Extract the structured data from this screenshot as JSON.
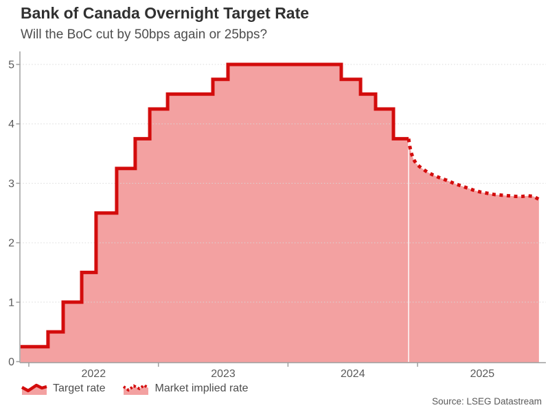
{
  "header": {
    "title": "Bank of Canada Overnight Target Rate",
    "subtitle": "Will the BoC cut by 50bps again or 25bps?"
  },
  "legend": {
    "items": [
      {
        "label": "Target rate",
        "line_style": "solid"
      },
      {
        "label": "Market implied rate",
        "line_style": "dotted"
      }
    ]
  },
  "footer": {
    "source": "Source: LSEG Datastream"
  },
  "colors": {
    "line": "#d30c0c",
    "fill": "#f3a1a1",
    "axis": "#9e9e9e",
    "grid": "#d8d8d8",
    "tick_text": "#595959",
    "separator": "#ffffff"
  },
  "chart_data": {
    "type": "line",
    "title": "Bank of Canada Overnight Target Rate",
    "subtitle": "Will the BoC cut by 50bps again or 25bps?",
    "xlabel": "",
    "ylabel": "",
    "grid": "horizontal-dotted",
    "legend_position": "bottom-left",
    "x_axis": {
      "ticks": [
        2022,
        2023,
        2024,
        2025
      ],
      "range_years": [
        2021.93,
        2026.0
      ],
      "tick_label_position": "mid-year"
    },
    "y_axis": {
      "ticks": [
        0,
        1,
        2,
        3,
        4,
        5
      ],
      "range": [
        0,
        5.2
      ]
    },
    "series": [
      {
        "name": "Target rate",
        "style": "step",
        "line": "solid",
        "points_year_rate": [
          [
            2021.936,
            0.25
          ],
          [
            2022.148,
            0.5
          ],
          [
            2022.265,
            1.0
          ],
          [
            2022.408,
            1.5
          ],
          [
            2022.519,
            2.5
          ],
          [
            2022.678,
            3.25
          ],
          [
            2022.821,
            3.75
          ],
          [
            2022.933,
            4.25
          ],
          [
            2023.071,
            4.5
          ],
          [
            2023.42,
            4.75
          ],
          [
            2023.537,
            5.0
          ],
          [
            2024.411,
            4.75
          ],
          [
            2024.56,
            4.5
          ],
          [
            2024.676,
            4.25
          ],
          [
            2024.814,
            3.75
          ]
        ],
        "end_year": 2024.931
      },
      {
        "name": "Market implied rate",
        "style": "curve",
        "line": "dotted",
        "points_year_rate": [
          [
            2024.931,
            3.75
          ],
          [
            2024.94,
            3.62
          ],
          [
            2024.952,
            3.51
          ],
          [
            2024.968,
            3.41
          ],
          [
            2024.99,
            3.33
          ],
          [
            2025.016,
            3.28
          ],
          [
            2025.042,
            3.24
          ],
          [
            2025.074,
            3.19
          ],
          [
            2025.121,
            3.14
          ],
          [
            2025.174,
            3.09
          ],
          [
            2025.227,
            3.05
          ],
          [
            2025.28,
            3.0
          ],
          [
            2025.333,
            2.96
          ],
          [
            2025.386,
            2.92
          ],
          [
            2025.439,
            2.88
          ],
          [
            2025.492,
            2.85
          ],
          [
            2025.545,
            2.83
          ],
          [
            2025.598,
            2.81
          ],
          [
            2025.651,
            2.8
          ],
          [
            2025.704,
            2.79
          ],
          [
            2025.757,
            2.78
          ],
          [
            2025.81,
            2.78
          ],
          [
            2025.852,
            2.79
          ],
          [
            2025.895,
            2.78
          ],
          [
            2025.937,
            2.73
          ]
        ]
      }
    ]
  }
}
